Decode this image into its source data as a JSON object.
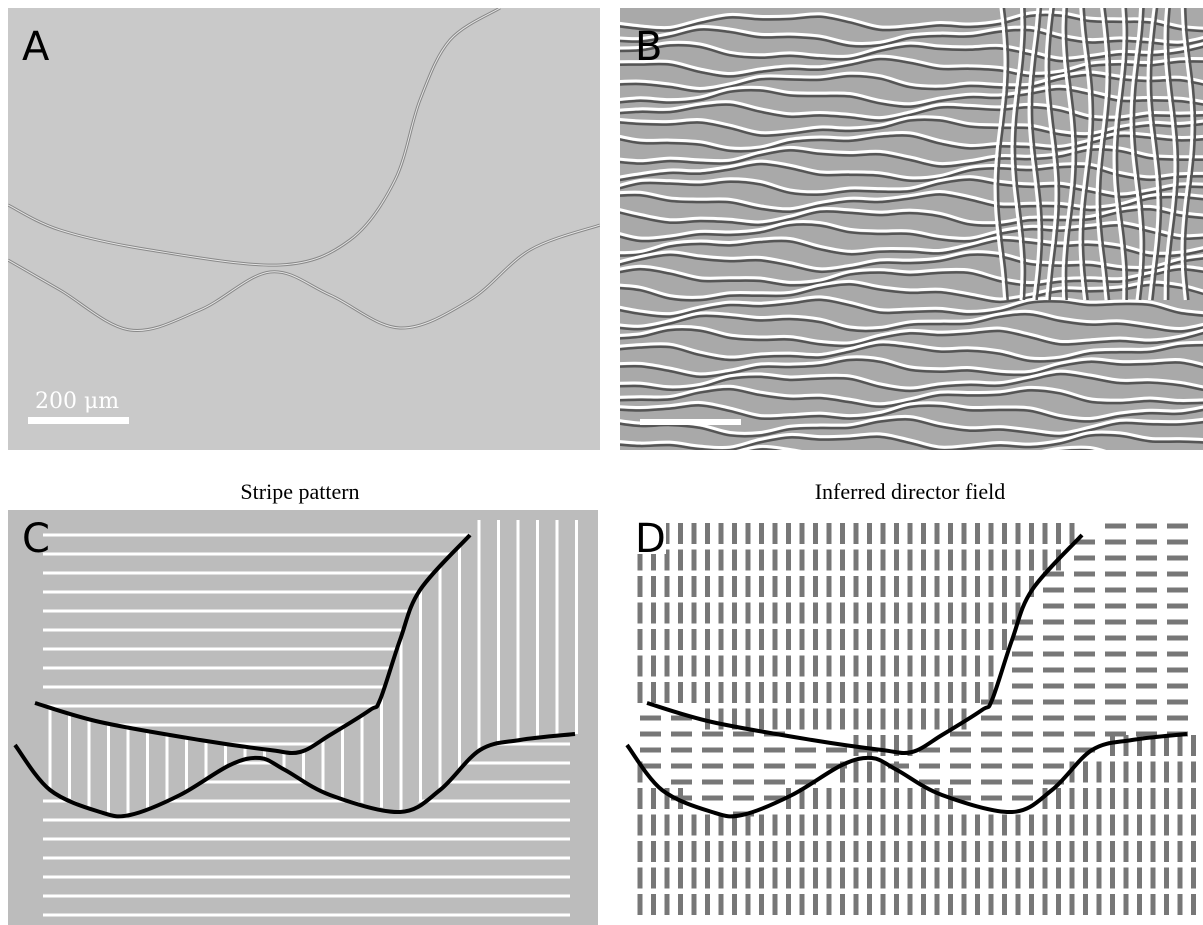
{
  "panels": [
    {
      "label": "A",
      "scale_bar": "200 μm"
    },
    {
      "label": "B"
    },
    {
      "label": "C",
      "title": "Stripe pattern"
    },
    {
      "label": "D",
      "title": "Inferred director field"
    }
  ]
}
